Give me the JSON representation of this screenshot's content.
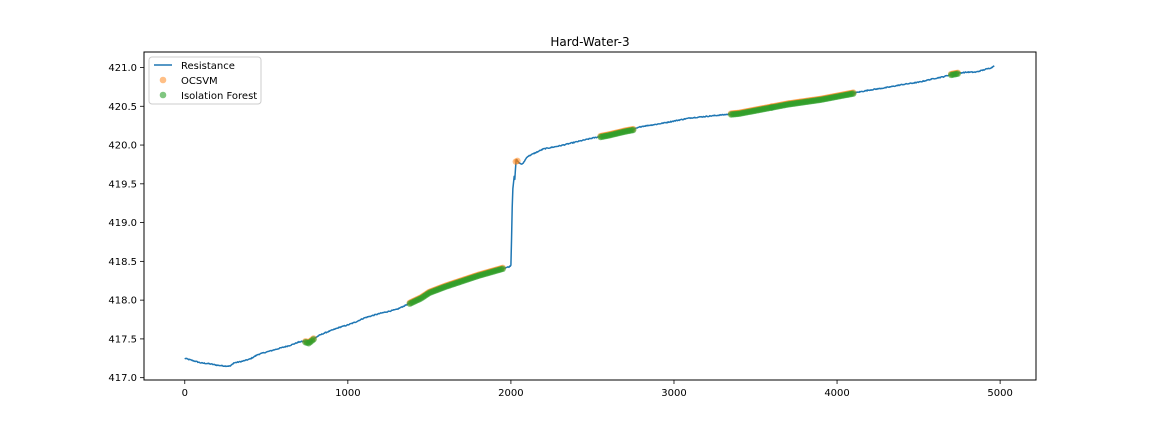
{
  "chart_data": {
    "type": "line",
    "title": "Hard-Water-3",
    "xlabel": "",
    "ylabel": "",
    "xlim": [
      -250,
      5220
    ],
    "ylim": [
      416.97,
      421.2
    ],
    "xticks": [
      0,
      1000,
      2000,
      3000,
      4000,
      5000
    ],
    "xtick_labels": [
      "0",
      "1000",
      "2000",
      "3000",
      "4000",
      "5000"
    ],
    "yticks": [
      417.0,
      417.5,
      418.0,
      418.5,
      419.0,
      419.5,
      420.0,
      420.5,
      421.0
    ],
    "ytick_labels": [
      "417.0",
      "417.5",
      "418.0",
      "418.5",
      "419.0",
      "419.5",
      "420.0",
      "420.5",
      "421.0"
    ],
    "grid": false,
    "legend_position": "top-left",
    "series": [
      {
        "name": "Resistance",
        "kind": "line",
        "color": "#1f77b4",
        "x": [
          0,
          50,
          100,
          150,
          200,
          250,
          280,
          300,
          350,
          400,
          450,
          500,
          550,
          600,
          650,
          700,
          730,
          760,
          790,
          820,
          850,
          900,
          950,
          1000,
          1050,
          1100,
          1150,
          1200,
          1300,
          1380,
          1450,
          1500,
          1600,
          1700,
          1800,
          1900,
          1950,
          1990,
          2000,
          2003,
          2010,
          2020,
          2025,
          2030,
          2033,
          2040,
          2050,
          2070,
          2100,
          2150,
          2200,
          2300,
          2400,
          2500,
          2600,
          2700,
          2750,
          2800,
          2900,
          3000,
          3100,
          3200,
          3300,
          3400,
          3500,
          3600,
          3700,
          3800,
          3900,
          4000,
          4100,
          4150,
          4200,
          4300,
          4400,
          4500,
          4600,
          4650,
          4700,
          4750,
          4800,
          4850,
          4900,
          4950,
          4965
        ],
        "y": [
          417.25,
          417.22,
          417.19,
          417.18,
          417.16,
          417.15,
          417.15,
          417.19,
          417.21,
          417.24,
          417.3,
          417.33,
          417.36,
          417.39,
          417.42,
          417.46,
          417.47,
          417.45,
          417.5,
          417.54,
          417.57,
          417.61,
          417.65,
          417.68,
          417.72,
          417.77,
          417.8,
          417.83,
          417.88,
          417.96,
          418.03,
          418.1,
          418.18,
          418.25,
          418.32,
          418.38,
          418.41,
          418.43,
          418.45,
          418.7,
          419.4,
          419.6,
          419.55,
          419.78,
          419.82,
          419.79,
          419.77,
          419.75,
          419.85,
          419.9,
          419.95,
          419.99,
          420.04,
          420.09,
          420.13,
          420.18,
          420.2,
          420.24,
          420.27,
          420.31,
          420.35,
          420.37,
          420.39,
          420.41,
          420.45,
          420.49,
          420.53,
          420.56,
          420.59,
          420.63,
          420.67,
          420.69,
          420.71,
          420.74,
          420.78,
          420.81,
          420.86,
          420.88,
          420.91,
          420.93,
          420.94,
          420.94,
          420.97,
          421.0,
          421.03
        ]
      },
      {
        "name": "OCSVM",
        "kind": "scatter",
        "color": "#ff7f0e",
        "ranges": [
          [
            740,
            790
          ],
          [
            1380,
            1950
          ],
          [
            2030,
            2045
          ],
          [
            2550,
            2750
          ],
          [
            3350,
            3600
          ],
          [
            3600,
            4100
          ],
          [
            4700,
            4740
          ]
        ]
      },
      {
        "name": "Isolation Forest",
        "kind": "scatter",
        "color": "#2ca02c",
        "ranges": [
          [
            740,
            790
          ],
          [
            1380,
            1950
          ],
          [
            2550,
            2750
          ],
          [
            3350,
            3600
          ],
          [
            3600,
            4100
          ],
          [
            4700,
            4740
          ]
        ]
      }
    ]
  }
}
